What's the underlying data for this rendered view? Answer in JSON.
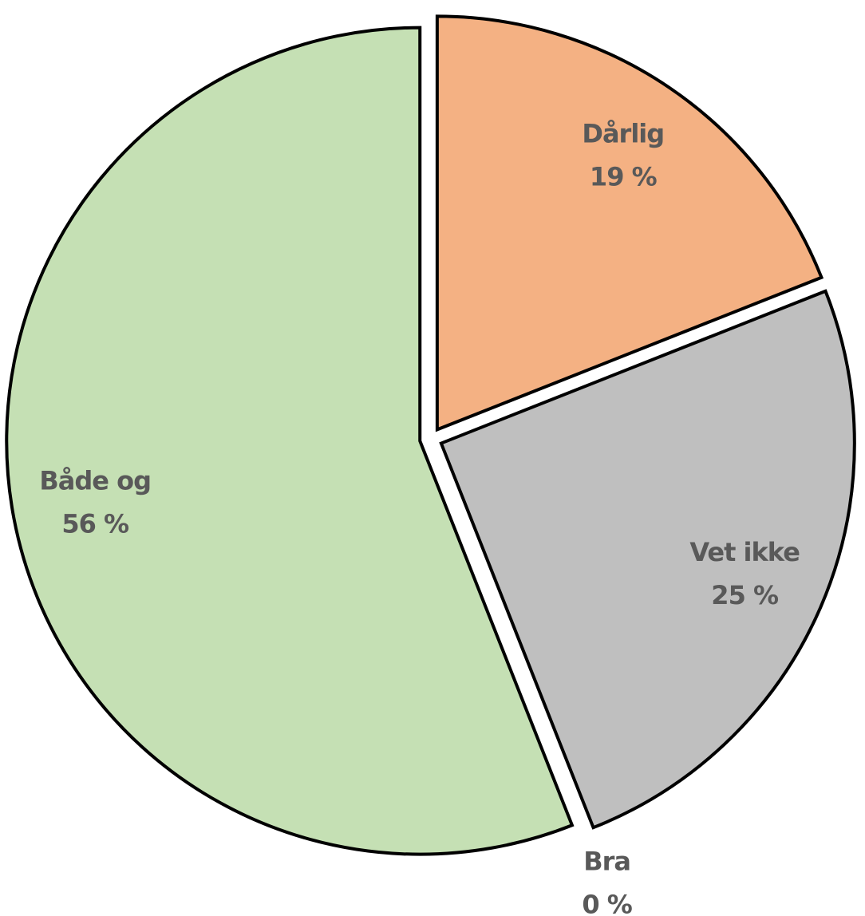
{
  "chart_data": {
    "type": "pie",
    "categories": [
      "Dårlig",
      "Vet ikke",
      "Bra",
      "Både og"
    ],
    "values": [
      19,
      25,
      0,
      56
    ],
    "value_labels": [
      "19 %",
      "25 %",
      "0 %",
      "56 %"
    ],
    "colors": [
      "#f4b183",
      "#bfbfbf",
      "#9dc3e6",
      "#c5e0b4"
    ]
  }
}
